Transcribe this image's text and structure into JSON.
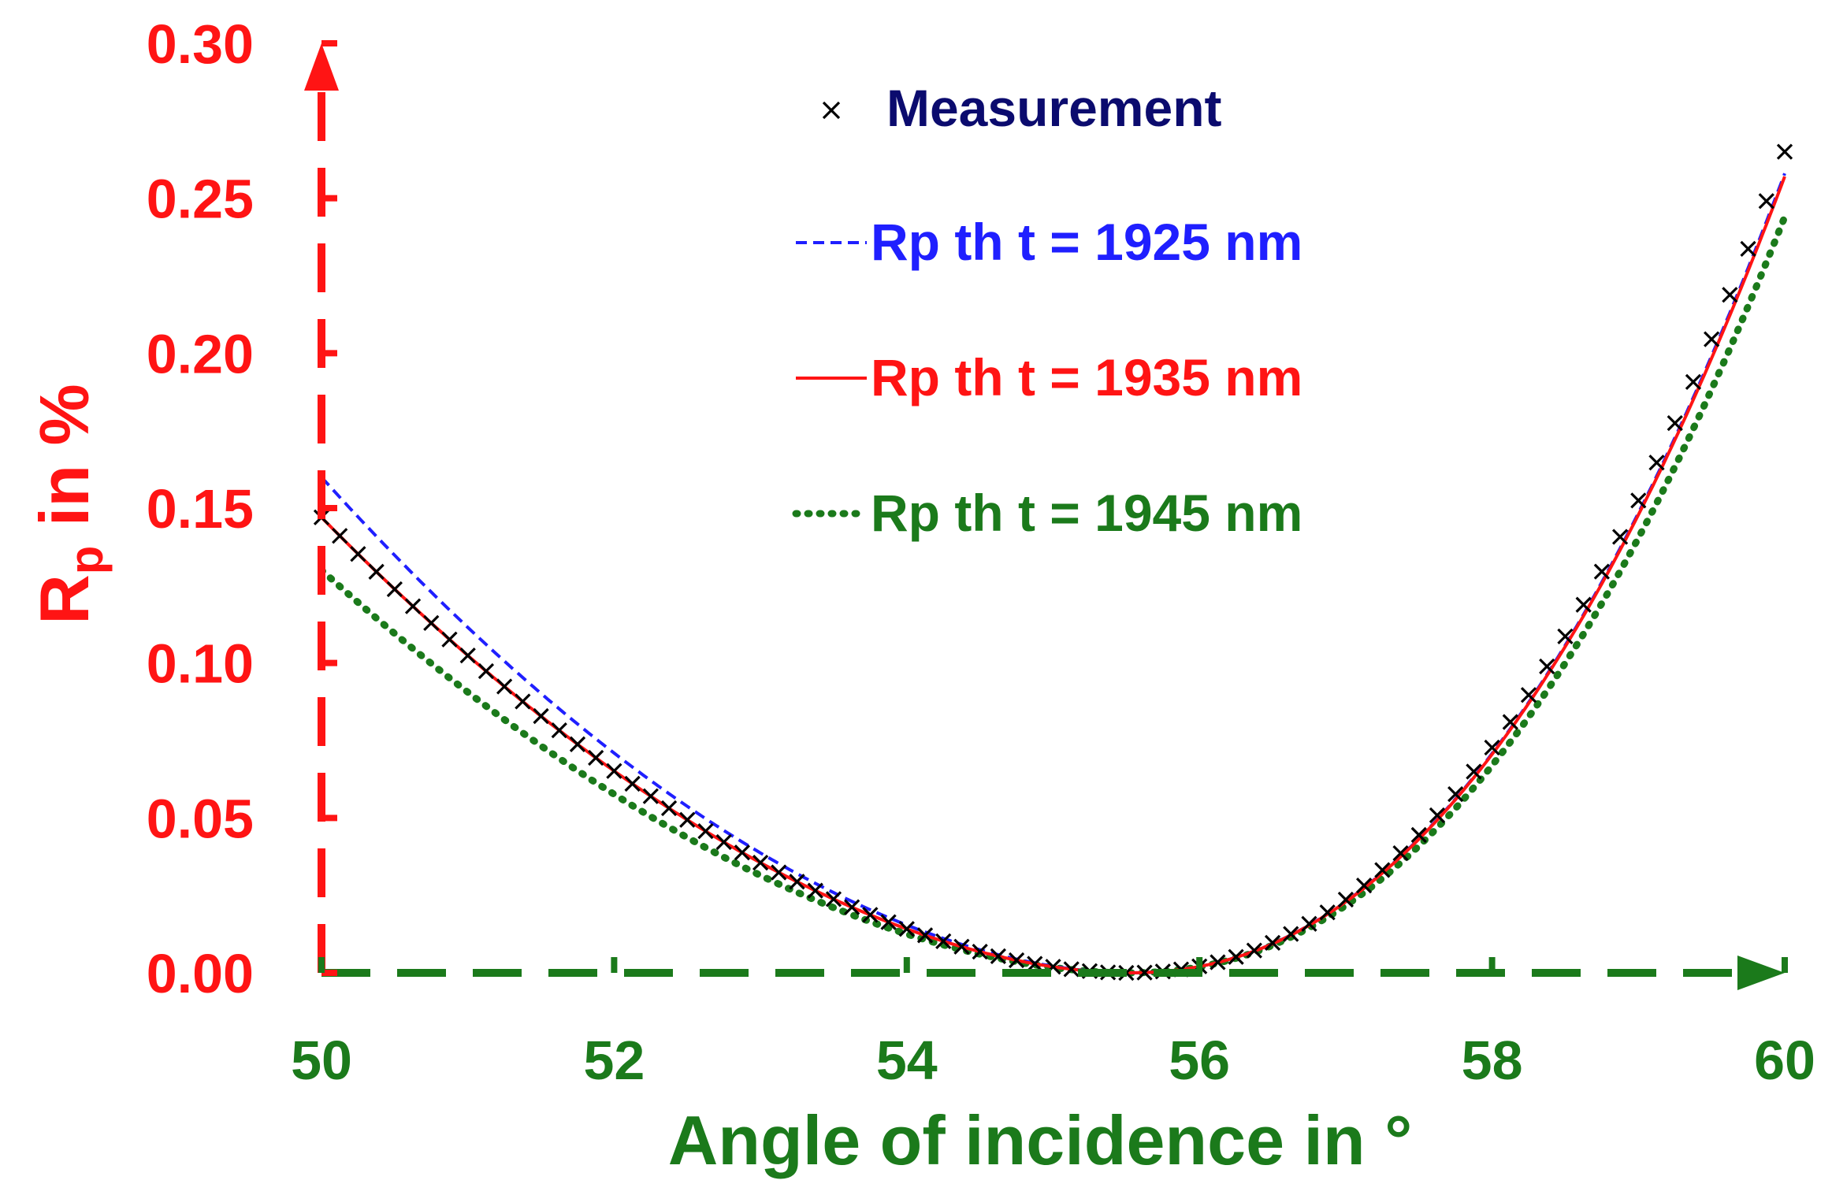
{
  "chart_data": {
    "type": "line",
    "title": "",
    "xlabel": "Angle of incidence in °",
    "ylabel_main": "R",
    "ylabel_sub": "p",
    "ylabel_rest": " in %",
    "xlim": [
      50,
      60
    ],
    "ylim": [
      0,
      0.3
    ],
    "xticks": [
      50,
      52,
      54,
      56,
      58,
      60
    ],
    "xtick_labels": [
      "50",
      "52",
      "54",
      "56",
      "58",
      "60"
    ],
    "yticks": [
      0,
      0.05,
      0.1,
      0.15,
      0.2,
      0.25,
      0.3
    ],
    "ytick_labels": [
      "0.00",
      "0.05",
      "0.10",
      "0.15",
      "0.20",
      "0.25",
      "0.30"
    ],
    "x_axis_color": "#1b7a1b",
    "y_axis_color": "#ff1414",
    "legend_position": "top-center",
    "min_angle": 55.5,
    "series": [
      {
        "name": "Measurement",
        "kind": "markers",
        "marker": "x",
        "color": "#000000",
        "label_color": "#0b0b6e",
        "start": 0.147,
        "end": 0.265,
        "step": 0.125
      },
      {
        "name": "Rp th t = 1925 nm",
        "kind": "dashed",
        "color": "#1f1fff",
        "label_color": "#1f1fff",
        "start": 0.16,
        "end": 0.258
      },
      {
        "name": "Rp th t = 1935 nm",
        "kind": "solid",
        "color": "#ff1414",
        "label_color": "#ff1414",
        "start": 0.147,
        "end": 0.257
      },
      {
        "name": "Rp th t = 1945 nm",
        "kind": "dotted",
        "color": "#1b7a1b",
        "label_color": "#1b7a1b",
        "start": 0.13,
        "end": 0.244
      }
    ]
  }
}
